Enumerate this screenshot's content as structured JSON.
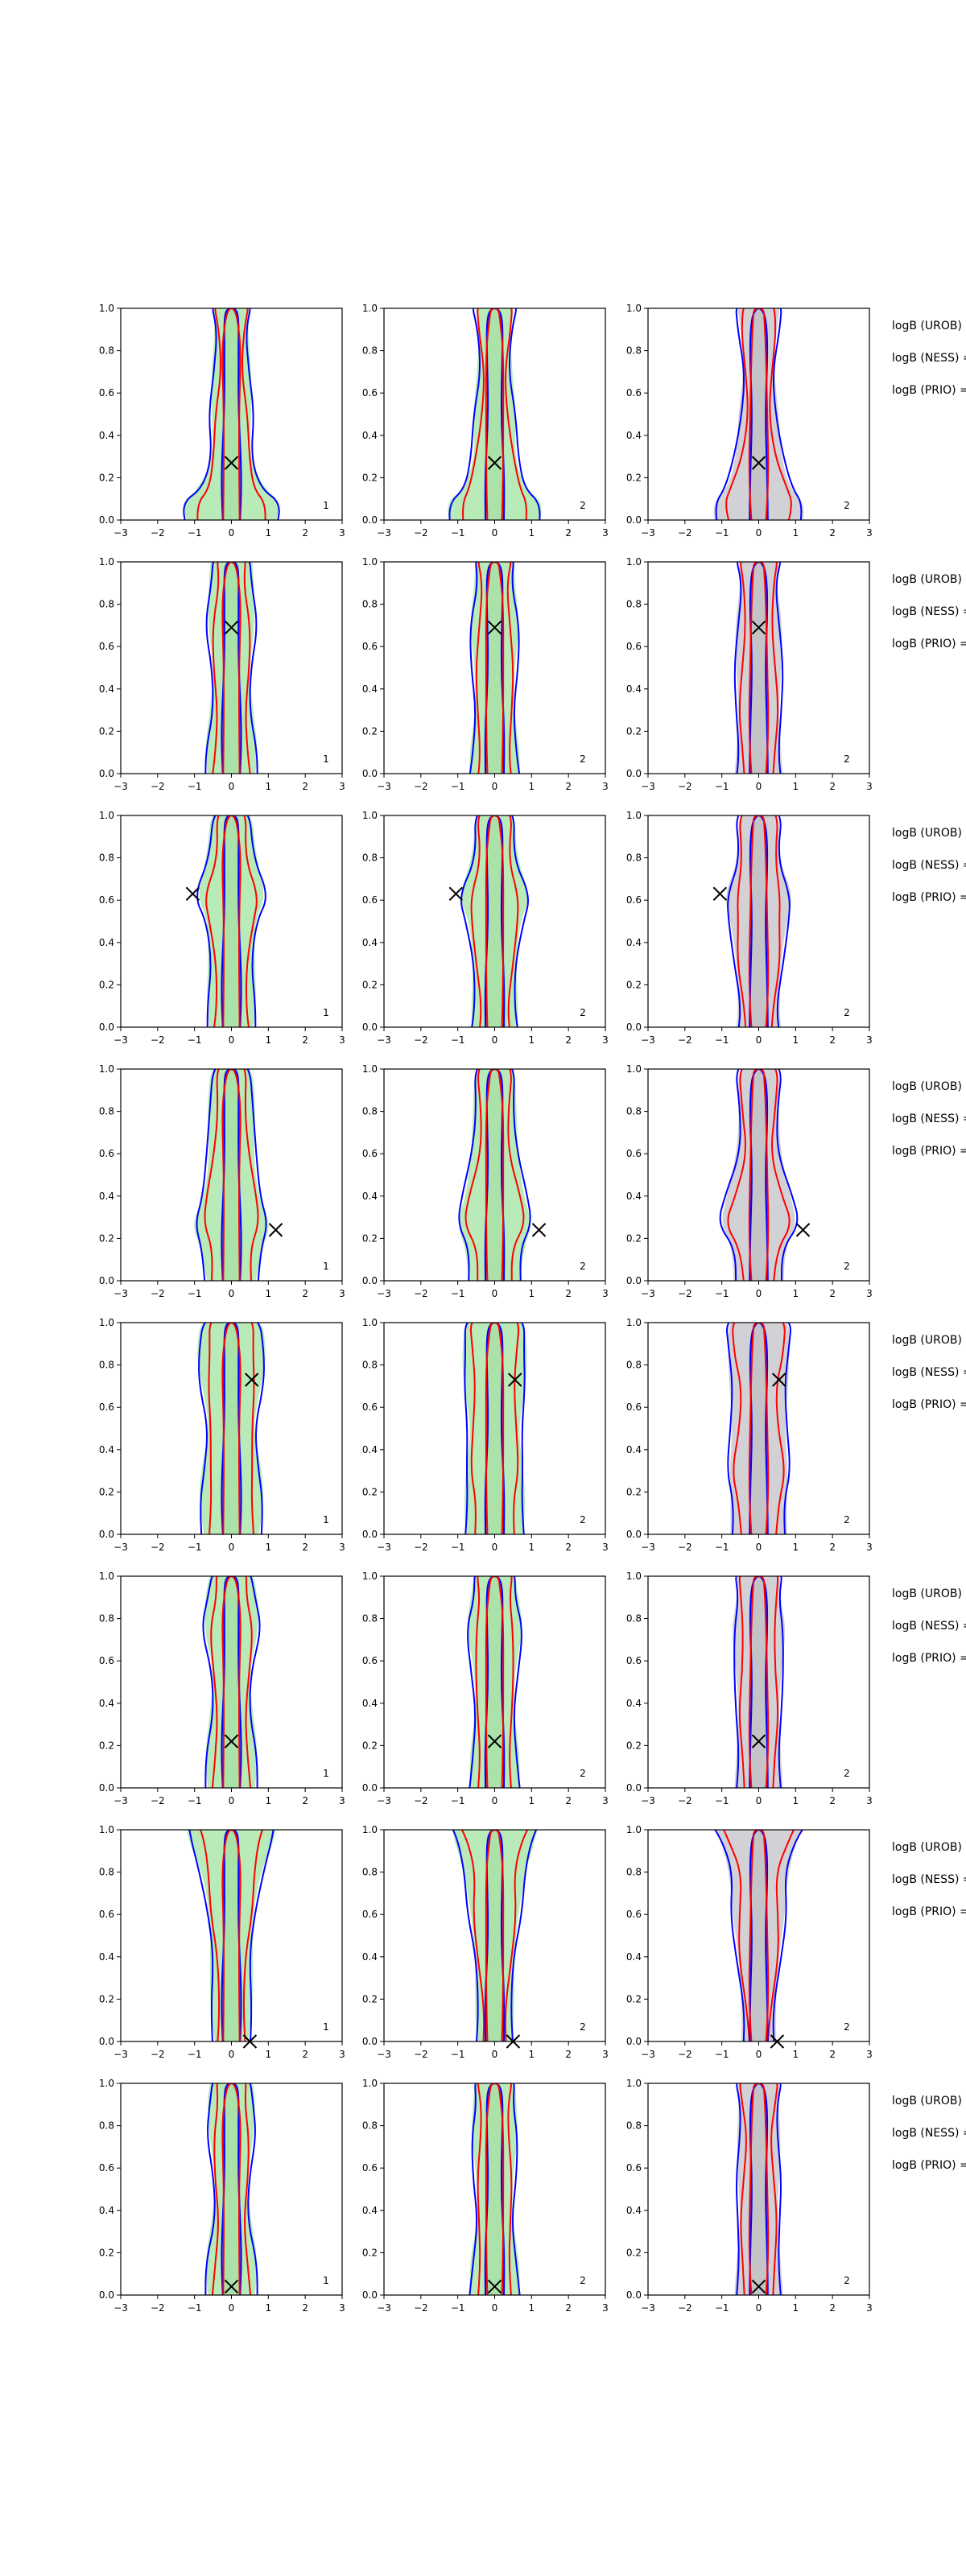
{
  "chart_data": {
    "type": "contour",
    "layout": {
      "rows": 8,
      "cols": 3
    },
    "xlim": [
      -3,
      3
    ],
    "ylim": [
      0,
      1
    ],
    "xticks": [
      -3,
      -2,
      -1,
      0,
      1,
      2,
      3
    ],
    "yticks": [
      0.0,
      0.2,
      0.4,
      0.6,
      0.8,
      1.0
    ],
    "xtick_labels": [
      "−3",
      "−2",
      "−1",
      "0",
      "1",
      "2",
      "3"
    ],
    "ytick_labels": [
      "0.0",
      "0.2",
      "0.4",
      "0.6",
      "0.8",
      "1.0"
    ],
    "colors": {
      "blue_contour": "#0000ff",
      "red_contour": "#ff0000",
      "green_fill": "#b8ebb8",
      "grey_fill": "#d2d2d6",
      "marker": "#000000"
    },
    "panel_corner_labels": [
      "1",
      "2",
      "2"
    ],
    "side_labels": [
      "logB (UROB) =",
      "logB (NESS) =",
      "logB (PRIO) ="
    ],
    "rows": [
      {
        "marker": {
          "x": 0.0,
          "y": 0.27
        }
      },
      {
        "marker": {
          "x": 0.0,
          "y": 0.69
        }
      },
      {
        "marker": {
          "x": -1.05,
          "y": 0.63
        }
      },
      {
        "marker": {
          "x": 1.2,
          "y": 0.24
        }
      },
      {
        "marker": {
          "x": 0.55,
          "y": 0.73
        }
      },
      {
        "marker": {
          "x": 0.0,
          "y": 0.22
        }
      },
      {
        "marker": {
          "x": 0.5,
          "y": 0.0
        }
      },
      {
        "marker": {
          "x": 0.0,
          "y": 0.04
        }
      }
    ]
  }
}
